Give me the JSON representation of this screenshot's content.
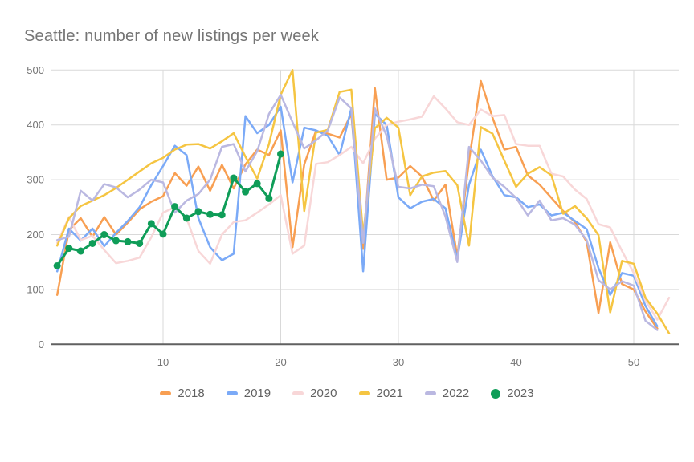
{
  "page": {
    "title": "Seattle: number of new listings per week"
  },
  "chart_data": {
    "type": "line",
    "title": "Seattle: number of new listings per week",
    "xlabel": "",
    "ylabel": "",
    "x_unit": "week number",
    "xlim": [
      0.4,
      53.8
    ],
    "ylim": [
      0,
      500
    ],
    "x_ticks": [
      10,
      20,
      30,
      40,
      50
    ],
    "y_ticks": [
      0,
      100,
      200,
      300,
      400,
      500
    ],
    "grid": true,
    "legend_position": "bottom",
    "colors": {
      "axis": "#616161",
      "gridline": "#d9d9d9",
      "tick_label": "#757575",
      "title": "#757575",
      "legend_text": "#616161"
    },
    "series": [
      {
        "name": "2018",
        "color": "#F89F52",
        "marker": false,
        "values": [
          90,
          208,
          230,
          196,
          232,
          200,
          222,
          246,
          260,
          270,
          312,
          289,
          324,
          280,
          327,
          284,
          328,
          355,
          345,
          390,
          177,
          328,
          389,
          384,
          377,
          420,
          174,
          467,
          300,
          304,
          325,
          306,
          262,
          291,
          160,
          335,
          480,
          413,
          355,
          360,
          308,
          291,
          267,
          243,
          223,
          187,
          57,
          186,
          110,
          100,
          60,
          29
        ]
      },
      {
        "name": "2019",
        "color": "#7BAAF7",
        "marker": false,
        "values": [
          133,
          211,
          189,
          211,
          179,
          203,
          225,
          250,
          290,
          325,
          362,
          345,
          230,
          177,
          153,
          165,
          416,
          385,
          400,
          433,
          295,
          395,
          390,
          380,
          345,
          430,
          133,
          420,
          400,
          268,
          248,
          260,
          265,
          248,
          155,
          291,
          355,
          306,
          272,
          268,
          250,
          255,
          235,
          240,
          225,
          210,
          139,
          90,
          130,
          125,
          70,
          33
        ]
      },
      {
        "name": "2020",
        "color": "#F8D7D8",
        "marker": false,
        "values": [
          185,
          232,
          190,
          198,
          172,
          148,
          152,
          158,
          195,
          240,
          250,
          230,
          170,
          147,
          200,
          223,
          226,
          240,
          255,
          272,
          165,
          180,
          329,
          332,
          345,
          360,
          330,
          375,
          400,
          406,
          410,
          415,
          452,
          430,
          405,
          400,
          428,
          416,
          418,
          365,
          362,
          362,
          311,
          306,
          282,
          265,
          219,
          213,
          170,
          130,
          80,
          45,
          85
        ]
      },
      {
        "name": "2021",
        "color": "#F5C542",
        "marker": false,
        "values": [
          180,
          230,
          252,
          262,
          272,
          285,
          300,
          315,
          330,
          340,
          355,
          364,
          365,
          357,
          370,
          385,
          342,
          302,
          365,
          455,
          500,
          243,
          386,
          391,
          460,
          464,
          199,
          394,
          413,
          395,
          272,
          306,
          313,
          316,
          290,
          180,
          396,
          384,
          335,
          287,
          311,
          323,
          308,
          238,
          252,
          230,
          199,
          58,
          152,
          147,
          85,
          56,
          20
        ]
      },
      {
        "name": "2022",
        "color": "#BAB8E1",
        "marker": false,
        "values": [
          190,
          196,
          280,
          262,
          292,
          286,
          268,
          282,
          300,
          295,
          240,
          262,
          274,
          300,
          360,
          365,
          315,
          352,
          420,
          455,
          405,
          357,
          372,
          390,
          450,
          430,
          185,
          430,
          380,
          287,
          284,
          291,
          288,
          233,
          150,
          360,
          335,
          304,
          287,
          267,
          235,
          262,
          226,
          230,
          218,
          190,
          117,
          100,
          115,
          107,
          43,
          26
        ]
      },
      {
        "name": "2023",
        "color": "#0F9D58",
        "marker": true,
        "values": [
          143,
          175,
          170,
          184,
          200,
          189,
          187,
          184,
          220,
          201,
          251,
          230,
          242,
          237,
          236,
          303,
          278,
          293,
          266,
          347
        ]
      }
    ]
  }
}
